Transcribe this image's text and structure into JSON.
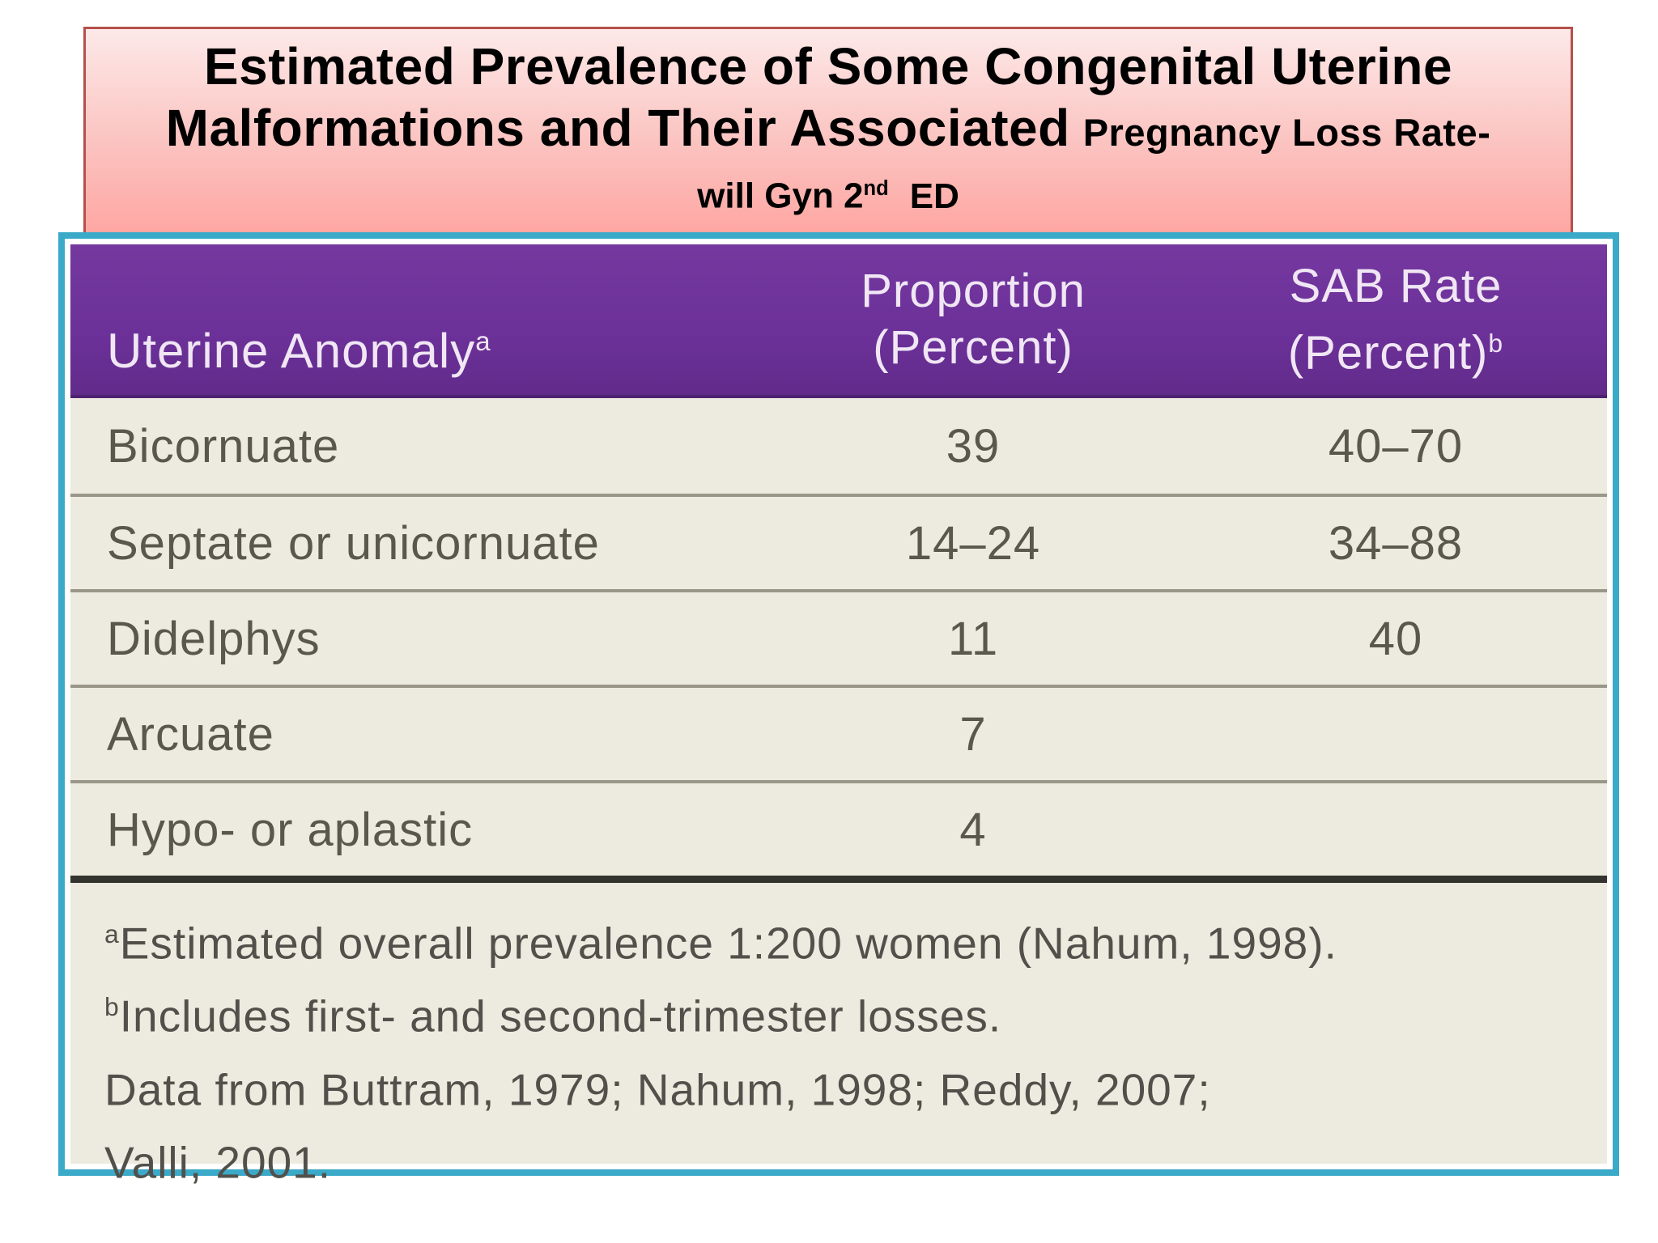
{
  "title": {
    "line1": "Estimated Prevalence of Some Congenital Uterine",
    "line2_main": "Malformations and Their Associated",
    "line2_small": "Pregnancy Loss Rate-",
    "line3_pre": "will Gyn 2",
    "line3_sup": "nd",
    "line3_post": "ED"
  },
  "table": {
    "columns": {
      "anomaly": {
        "label": "Uterine Anomaly",
        "sup": "a"
      },
      "proportion": {
        "line1": "Proportion",
        "line2": "(Percent)",
        "sup": ""
      },
      "sab": {
        "line1": "SAB Rate",
        "line2": "(Percent)",
        "sup": "b"
      }
    },
    "rows": [
      {
        "anomaly": "Bicornuate",
        "proportion": "39",
        "sab": "40–70"
      },
      {
        "anomaly": "Septate or unicornuate",
        "proportion": "14–24",
        "sab": "34–88"
      },
      {
        "anomaly": "Didelphys",
        "proportion": "11",
        "sab": "40"
      },
      {
        "anomaly": "Arcuate",
        "proportion": "7",
        "sab": ""
      },
      {
        "anomaly": "Hypo- or aplastic",
        "proportion": "4",
        "sab": ""
      }
    ],
    "footnotes": [
      {
        "sup": "a",
        "text": "Estimated overall prevalence 1:200 women (Nahum, 1998)."
      },
      {
        "sup": "b",
        "text": "Includes first- and second-trimester losses."
      },
      {
        "sup": "",
        "text": "Data from Buttram, 1979; Nahum, 1998; Reddy, 2007;"
      },
      {
        "sup": "",
        "text": "Valli, 2001."
      }
    ]
  },
  "chart_data": {
    "type": "table",
    "title": "Estimated Prevalence of Some Congenital Uterine Malformations and Their Associated Pregnancy Loss Rate - will Gyn 2nd ED",
    "columns": [
      "Uterine Anomaly",
      "Proportion (Percent)",
      "SAB Rate (Percent)"
    ],
    "rows": [
      [
        "Bicornuate",
        "39",
        "40–70"
      ],
      [
        "Septate or unicornuate",
        "14–24",
        "34–88"
      ],
      [
        "Didelphys",
        "11",
        "40"
      ],
      [
        "Arcuate",
        "7",
        ""
      ],
      [
        "Hypo- or aplastic",
        "4",
        ""
      ]
    ],
    "footnotes": [
      "a: Estimated overall prevalence 1:200 women (Nahum, 1998).",
      "b: Includes first- and second-trimester losses.",
      "Data from Buttram, 1979; Nahum, 1998; Reddy, 2007; Valli, 2001."
    ]
  },
  "colors": {
    "title_border": "#B5504B",
    "title_grad_top": "#FCE9E8",
    "title_grad_bottom": "#FEA7A3",
    "frame_teal": "#3BA9C8",
    "header_purple": "#6C3199",
    "header_text": "#F0E6F4",
    "body_bg": "#EDEBDF",
    "body_text": "#5A574D",
    "separator": "#9A9789",
    "thick_rule": "#34342E"
  }
}
